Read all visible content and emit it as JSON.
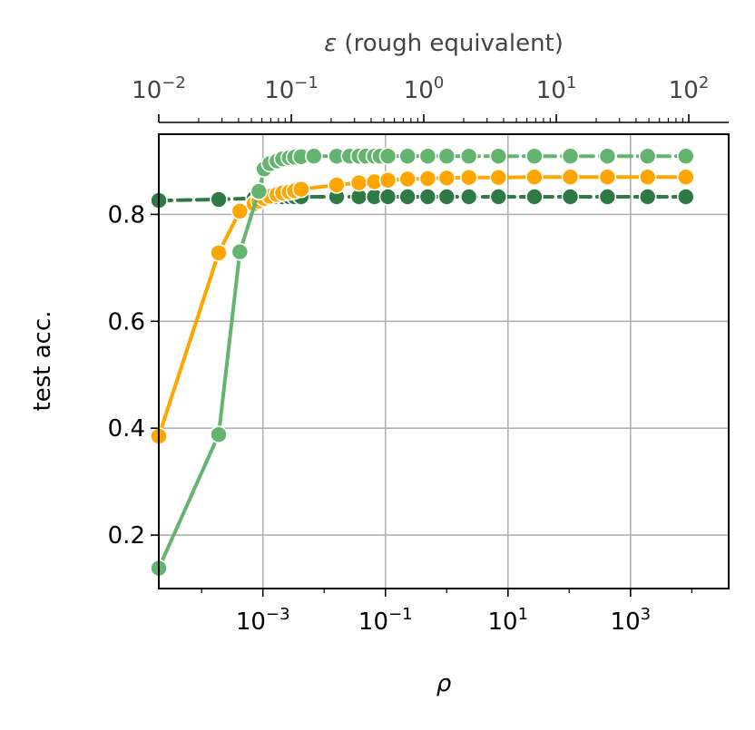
{
  "chart_data": {
    "type": "line",
    "title": "",
    "xlabel": "ρ",
    "ylabel": "test acc.",
    "top_xlabel_symbol": "ε",
    "top_xlabel_text": " (rough equivalent)",
    "x_scale": "log",
    "xlim": [
      2e-05,
      40000
    ],
    "ylim": [
      0.1,
      0.95
    ],
    "grid": true,
    "legend": "none",
    "x_ticks": [
      {
        "value": 0.001,
        "base": "10",
        "exp": "−3"
      },
      {
        "value": 0.1,
        "base": "10",
        "exp": "−1"
      },
      {
        "value": 10,
        "base": "10",
        "exp": "1"
      },
      {
        "value": 1000,
        "base": "10",
        "exp": "3"
      }
    ],
    "y_ticks": [
      {
        "value": 0.2,
        "label": "0.2"
      },
      {
        "value": 0.4,
        "label": "0.4"
      },
      {
        "value": 0.6,
        "label": "0.6"
      },
      {
        "value": 0.8,
        "label": "0.8"
      }
    ],
    "top_axis": {
      "scale": "log",
      "xlim": [
        0.01,
        200
      ],
      "ticks": [
        {
          "value": 0.01,
          "base": "10",
          "exp": "−2"
        },
        {
          "value": 0.1,
          "base": "10",
          "exp": "−1"
        },
        {
          "value": 1,
          "base": "10",
          "exp": "0"
        },
        {
          "value": 10,
          "base": "10",
          "exp": "1"
        },
        {
          "value": 100,
          "base": "10",
          "exp": "2"
        }
      ]
    },
    "series": [
      {
        "color": "#2e7a45",
        "linestyle": "dashed",
        "x": [
          2e-05,
          0.00019,
          0.00072,
          0.00086,
          0.00105,
          0.0013,
          0.0017,
          0.0021,
          0.0027,
          0.0033,
          0.0042,
          0.016,
          0.037,
          0.066,
          0.11,
          0.23,
          0.49,
          1.0,
          2.3,
          7.0,
          27,
          104,
          420,
          1900,
          8000
        ],
        "y": [
          0.826,
          0.828,
          0.83,
          0.831,
          0.832,
          0.833,
          0.833,
          0.833,
          0.833,
          0.833,
          0.833,
          0.833,
          0.833,
          0.833,
          0.833,
          0.833,
          0.833,
          0.833,
          0.833,
          0.833,
          0.833,
          0.833,
          0.833,
          0.833,
          0.833
        ]
      },
      {
        "color": "#ffa500",
        "linestyle": "solid",
        "x": [
          2e-05,
          0.00019,
          0.00042,
          0.00072,
          0.00086,
          0.00105,
          0.0013,
          0.0017,
          0.0021,
          0.0027,
          0.0033,
          0.0042,
          0.016,
          0.037,
          0.066,
          0.11,
          0.23,
          0.49,
          1.0,
          2.3,
          7.0,
          27,
          104,
          420,
          1900,
          8000
        ],
        "y": [
          0.385,
          0.728,
          0.806,
          0.82,
          0.825,
          0.83,
          0.834,
          0.837,
          0.84,
          0.842,
          0.844,
          0.847,
          0.855,
          0.859,
          0.861,
          0.864,
          0.866,
          0.867,
          0.868,
          0.869,
          0.869,
          0.87,
          0.87,
          0.87,
          0.87,
          0.87
        ]
      },
      {
        "color": "#63b46e",
        "linestyle": "solid",
        "x": [
          2e-05,
          0.00019,
          0.00042,
          0.00086,
          0.00105,
          0.0013,
          0.0017,
          0.0021,
          0.0027,
          0.0033,
          0.0042,
          0.0068
        ],
        "y": [
          0.138,
          0.388,
          0.73,
          0.843,
          0.885,
          0.895,
          0.9,
          0.904,
          0.906,
          0.907,
          0.908,
          0.909
        ]
      },
      {
        "color": "#63b46e",
        "linestyle": "dashed",
        "x": [
          0.0068,
          0.016,
          0.026,
          0.037,
          0.048,
          0.066,
          0.082,
          0.11,
          0.23,
          0.49,
          1.0,
          2.3,
          7.0,
          27,
          104,
          420,
          1900,
          8000
        ],
        "y": [
          0.909,
          0.909,
          0.909,
          0.909,
          0.909,
          0.909,
          0.909,
          0.909,
          0.909,
          0.909,
          0.909,
          0.909,
          0.909,
          0.909,
          0.909,
          0.909,
          0.909,
          0.909
        ]
      }
    ]
  }
}
